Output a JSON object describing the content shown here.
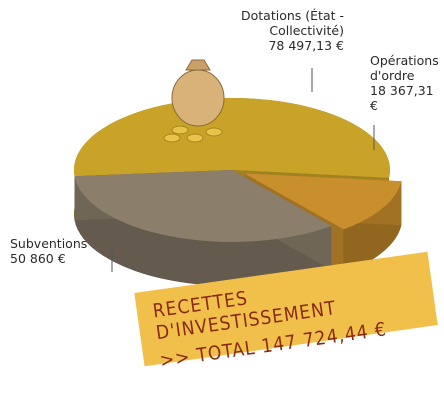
{
  "chart_data": {
    "type": "pie",
    "title": "Recettes d'investissement",
    "subtitle": ">> Total 147 724,44 €",
    "categories": [
      "Dotations (État - Collectivité)",
      "Opérations d'ordre",
      "Subventions"
    ],
    "values": [
      78497.13,
      18367.31,
      50860
    ],
    "value_labels": [
      "78 497,13 €",
      "18 367,31 €",
      "50 860 €"
    ],
    "colors": [
      "#c9a228",
      "#c98f2c",
      "#8b7f6c"
    ]
  }
}
